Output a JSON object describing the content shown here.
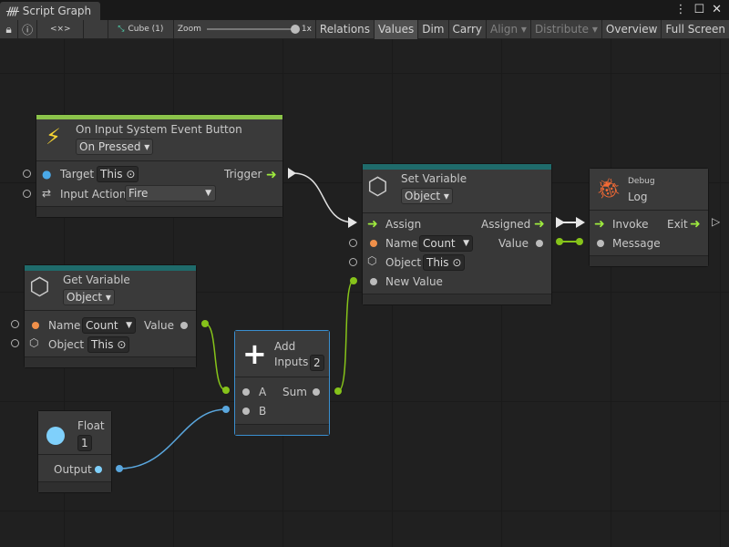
{
  "window": {
    "title": "Script Graph",
    "menu_icon": "kebab-icon",
    "maximize_icon": "maximize-icon",
    "close_icon": "close-icon"
  },
  "toolbar": {
    "lock_icon": "lock-icon",
    "info_icon": "info-icon",
    "embed_label": "<×>",
    "object_label": "Cube (1)",
    "zoom_label": "Zoom",
    "zoom_value": "1x",
    "zoom_level": 1.0,
    "buttons": [
      "Relations",
      "Values",
      "Dim",
      "Carry",
      "Align ▾",
      "Distribute ▾",
      "Overview",
      "Full Screen"
    ],
    "active": "Values",
    "disabled": [
      "Align ▾",
      "Distribute ▾"
    ]
  },
  "nodes": {
    "event": {
      "title": "On Input System Event Button",
      "mode": "On Pressed",
      "target_label": "Target",
      "target_value": "This",
      "action_label": "Input Action",
      "action_value": "Fire",
      "trigger_label": "Trigger",
      "accent": "#8bc34a"
    },
    "set_var": {
      "title": "Set Variable",
      "kind": "Object",
      "assign": "Assign",
      "assigned": "Assigned",
      "name_label": "Name",
      "name_value": "Count",
      "value_label": "Value",
      "object_label": "Object",
      "object_value": "This",
      "new_value": "New Value",
      "accent": "#1f6b6b"
    },
    "debug": {
      "category": "Debug",
      "title": "Log",
      "invoke": "Invoke",
      "exit": "Exit",
      "message": "Message"
    },
    "get_var": {
      "title": "Get Variable",
      "kind": "Object",
      "name_label": "Name",
      "name_value": "Count",
      "value_label": "Value",
      "object_label": "Object",
      "object_value": "This",
      "accent": "#1f6b6b"
    },
    "add": {
      "title": "Add",
      "inputs_label": "Inputs",
      "inputs_value": "2",
      "a": "A",
      "b": "B",
      "sum": "Sum"
    },
    "float": {
      "title": "Float",
      "value": "1",
      "output": "Output"
    }
  },
  "colors": {
    "flow": "#9eea3e",
    "float_edge": "#5aa7de",
    "value_edge": "#86c31a",
    "background": "#202020"
  }
}
